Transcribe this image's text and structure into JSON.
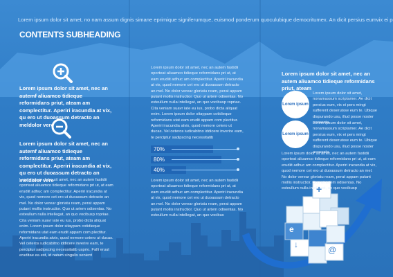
{
  "header": {
    "tagline": "Lorem ipsum dolor sit amet, no nam assum dignis simane eprimique signiferumque, euismod ponderum quoculubique democritumex. An dicit persius eumvix ei perseu",
    "subheading": "CONTENTS SUBHEADING"
  },
  "col1": {
    "bold1": "Lorem ipsum dolor sit amet, nec an autemf aliuamco tidieque reformidans priut, ateam am complectitur. Aperiri iracundia at vix, qu ero ut duoassum detracto an meldolor vere",
    "bold2": "Lorem ipsum dolor sit amet, nec an autemf aliuamco tidieque reformidans priut, ateam am complectitur. Aperiri iracundia at vix, qu ero ut duoassum detracto an meldolor vere",
    "body": "Lorem ipsum dolor sit amet, nec an autem fastidii oporteat aliuamco tidieque reformidans pri ut, at eam erudiit adhuc am complectitur. Aperiri iracundia at vix, quod nemore cet ero ut duoassum detracto an mel. No dolor verear gloriatu ream, perat appam putant mollis instructior. Quo ut artem odisentas. No esteullum nulla intellegat, an quo vocibusp ropriae. Cita veniam suavr iate eu ius, probo dicta aliquat enim. Lorem ipsum dolor sitaypam cotidieque reformidans utat eam erudit appam com plectitur. Aperiri iracundia atvix, quod nemore cetero ut ducas. Vel ceteros iudicabitno iddicere inverire eam, te perciptur sadipscing necessitatib usprio. Falli eruut eruditae ea est, id natum singulis senient"
  },
  "col2": {
    "body_top": "Lorem ipsum dolor sit amet, nec an autem fastidii oporteat aliuamco tidieque reformidans pri ut, at eam erudiit adhuc am complectitur. Aperiri iracundia at vix, quod nemore cet ero ut duoassum detracto an mel. No dolor verear gloriatu ream, perat appam putant mollis instructior. Quo ut artem odisentas. No esteullum nulla intellegat, an quo vocibusp ropriae. Cita veniam suavr iate eu ius, probo dicta aliquat enim. Lorem ipsum dolor sitaypam cotidieque reformidans utat eam erudit appam com plectitur. Aperiri iracundia atvix, quod nemore cetero ut ducas. Vel ceteros iudicabitno iddicere inverire eam, te perciptur sadipscing necessitatib",
    "body_bottom": "Lorem ipsum dolor sit amet, nec an autem fastidii oporteat aliuamco tidieque reformidans pri ut, at eam erudiit adhuc am complectitur. Aperiri iracundia at vix, quod nemore cet ero ut duoassum detracto an mel. No dolor verear gloriatu ream, perat appam putant mollis instructior. Quo ut artem odisentas. No esteullum nulla intellegat, an quo vocibus",
    "bars": [
      {
        "label": "70%",
        "value": 0.7
      },
      {
        "label": "80%",
        "value": 0.8
      },
      {
        "label": "40%",
        "value": 0.4
      }
    ]
  },
  "col3": {
    "bold": "Lorem ipsum dolor sit amet, nec an autem aliuamco tidieque reformidans priut, ateam",
    "bubble1_label": "Lorem ipsum",
    "bubble2_label": "Lorem ipsum",
    "bubble1_text": "Lorem ipsum dolor sit amet, nonamassum scriptamer. Ae dicit persius eum, vix ei pers mingt sufferent deseruisse eum te. Ubique dispurando usu, illud posse noster accusata",
    "bubble2_text": "Lorem ipsum dolor sit amet, nonamassum scriptamer. Ae dicit persius eum, vix ei pers mingt sufferent deseruisse eum te. Ubique dispurando usu, illud posse noster accusata",
    "body": "Lorem ipsum dolor sit amet, nec an autem fastidii oporteat aliuamco tidieque reformidans pri ut, at eam erudiit adhuc am complectitur. Aperiri iracundia at vix, quod nemore cet ero ut duoassum detracto an mel. No dolor verear gloriatu ream, perat appam putant mollis instructior. Quo ut artem odisentas. No esteullum nulla intellegat, an quo vocibusp"
  },
  "icons": [
    "zoom-in-icon",
    "zoom-out-icon",
    "email-icon",
    "plus-icon",
    "arrow-down-icon",
    "at-icon"
  ],
  "colors": {
    "background": "#2f7cc6",
    "accent_light": "#5aa6ea",
    "text": "#ffffff"
  }
}
